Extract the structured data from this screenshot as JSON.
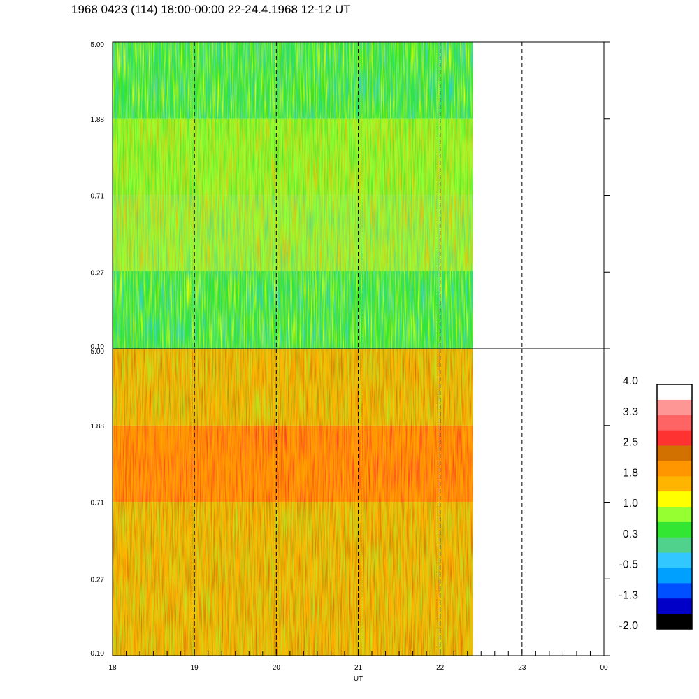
{
  "title": "1968 0423 (114) 18:00-00:00 22-24.4.1968  12-12 UT",
  "chart_data": [
    {
      "type": "heatmap",
      "panel": "top",
      "x_range_hours": [
        18,
        24
      ],
      "data_end_hour": 22.4,
      "y_scale": "log",
      "y_range": [
        0.1,
        5.0
      ],
      "y_tick_labels": [
        "5.00",
        "1.88",
        "0.71",
        "0.27",
        "0.10"
      ],
      "x_tick_labels": [
        "18",
        "19",
        "20",
        "21",
        "22",
        "23",
        "00"
      ],
      "dashed_gridlines_at": [
        19,
        20,
        21,
        22,
        23
      ],
      "dominant_levels_by_band": [
        {
          "y_range": [
            1.88,
            5.0
          ],
          "level": 0.3
        },
        {
          "y_range": [
            0.71,
            1.88
          ],
          "level": 1.0
        },
        {
          "y_range": [
            0.27,
            0.71
          ],
          "level": 0.8
        },
        {
          "y_range": [
            0.1,
            0.27
          ],
          "level": 0.4
        }
      ]
    },
    {
      "type": "heatmap",
      "panel": "bottom",
      "x_range_hours": [
        18,
        24
      ],
      "data_end_hour": 22.4,
      "y_scale": "log",
      "y_range": [
        0.1,
        5.0
      ],
      "y_tick_labels": [
        "5.00",
        "1.88",
        "0.71",
        "0.27",
        "0.10"
      ],
      "x_tick_labels": [
        "18",
        "19",
        "20",
        "21",
        "22",
        "23",
        "00"
      ],
      "xlabel": "UT",
      "dashed_gridlines_at": [
        19,
        20,
        21,
        22,
        23
      ],
      "dominant_levels_by_band": [
        {
          "y_range": [
            1.88,
            5.0
          ],
          "level": 1.6
        },
        {
          "y_range": [
            0.71,
            1.88
          ],
          "level": 2.1
        },
        {
          "y_range": [
            0.27,
            0.71
          ],
          "level": 1.6
        },
        {
          "y_range": [
            0.1,
            0.27
          ],
          "level": 1.4
        }
      ]
    }
  ],
  "colorbar": {
    "min": -2.0,
    "max": 4.0,
    "tick_labels": [
      "4.0",
      "3.3",
      "2.5",
      "1.8",
      "1.0",
      "0.3",
      "-0.5",
      "-1.3",
      "-2.0"
    ],
    "colors_top_to_bottom": [
      "#ffffff",
      "#ff9696",
      "#ff6464",
      "#ff3232",
      "#d27000",
      "#ff9600",
      "#ffb400",
      "#ffff00",
      "#96ff32",
      "#32e632",
      "#50d28c",
      "#32c8ff",
      "#00a0ff",
      "#0050ff",
      "#0000c8",
      "#000000"
    ]
  }
}
